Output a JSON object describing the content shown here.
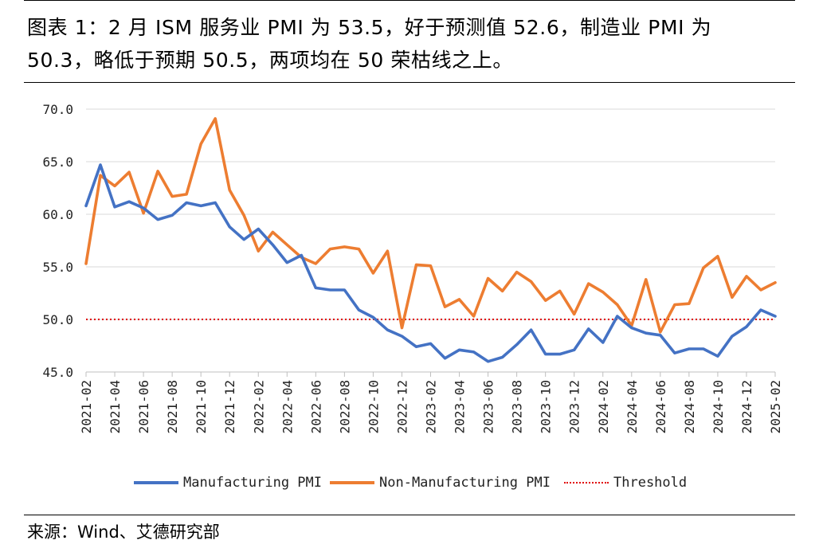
{
  "figure_title": "图表 1：2 月 ISM 服务业 PMI 为 53.5，好于预测值 52.6，制造业 PMI 为 50.3，略低于预期 50.5，两项均在 50 荣枯线之上。",
  "source": "来源：Wind、艾德研究部",
  "chart_data": {
    "type": "line",
    "x": [
      "2021-02",
      "2021-03",
      "2021-04",
      "2021-05",
      "2021-06",
      "2021-07",
      "2021-08",
      "2021-09",
      "2021-10",
      "2021-11",
      "2021-12",
      "2022-01",
      "2022-02",
      "2022-03",
      "2022-04",
      "2022-05",
      "2022-06",
      "2022-07",
      "2022-08",
      "2022-09",
      "2022-10",
      "2022-11",
      "2022-12",
      "2023-01",
      "2023-02",
      "2023-03",
      "2023-04",
      "2023-05",
      "2023-06",
      "2023-07",
      "2023-08",
      "2023-09",
      "2023-10",
      "2023-11",
      "2023-12",
      "2024-01",
      "2024-02",
      "2024-03",
      "2024-04",
      "2024-05",
      "2024-06",
      "2024-07",
      "2024-08",
      "2024-09",
      "2024-10",
      "2024-11",
      "2024-12",
      "2025-01",
      "2025-02"
    ],
    "x_tick_labels": [
      "2021-02",
      "2021-04",
      "2021-06",
      "2021-08",
      "2021-10",
      "2021-12",
      "2022-02",
      "2022-04",
      "2022-06",
      "2022-08",
      "2022-10",
      "2022-12",
      "2023-02",
      "2023-04",
      "2023-06",
      "2023-08",
      "2023-10",
      "2023-12",
      "2024-02",
      "2024-04",
      "2024-06",
      "2024-08",
      "2024-10",
      "2024-12",
      "2025-02"
    ],
    "y_tick_labels": [
      "45.0",
      "50.0",
      "55.0",
      "60.0",
      "65.0",
      "70.0"
    ],
    "ylim": [
      45,
      70
    ],
    "grid": true,
    "legend_position": "bottom",
    "series": [
      {
        "name": "Manufacturing PMI",
        "color": "#4472C4",
        "style": "solid",
        "values": [
          60.8,
          64.7,
          60.7,
          61.2,
          60.6,
          59.5,
          59.9,
          61.1,
          60.8,
          61.1,
          58.8,
          57.6,
          58.6,
          57.1,
          55.4,
          56.1,
          53.0,
          52.8,
          52.8,
          50.9,
          50.2,
          49.0,
          48.4,
          47.4,
          47.7,
          46.3,
          47.1,
          46.9,
          46.0,
          46.4,
          47.6,
          49.0,
          46.7,
          46.7,
          47.1,
          49.1,
          47.8,
          50.3,
          49.2,
          48.7,
          48.5,
          46.8,
          47.2,
          47.2,
          46.5,
          48.4,
          49.3,
          50.9,
          50.3
        ]
      },
      {
        "name": "Non-Manufacturing PMI",
        "color": "#ED7D31",
        "style": "solid",
        "values": [
          55.3,
          63.7,
          62.7,
          64.0,
          60.1,
          64.1,
          61.7,
          61.9,
          66.7,
          69.1,
          62.3,
          59.9,
          56.5,
          58.3,
          57.1,
          55.9,
          55.3,
          56.7,
          56.9,
          56.7,
          54.4,
          56.5,
          49.2,
          55.2,
          55.1,
          51.2,
          51.9,
          50.3,
          53.9,
          52.7,
          54.5,
          53.6,
          51.8,
          52.7,
          50.5,
          53.4,
          52.6,
          51.4,
          49.4,
          53.8,
          48.8,
          51.4,
          51.5,
          54.9,
          56.0,
          52.1,
          54.1,
          52.8,
          53.5
        ]
      },
      {
        "name": "Threshold",
        "color": "#E00000",
        "style": "dotted",
        "value": 50.0
      }
    ]
  }
}
